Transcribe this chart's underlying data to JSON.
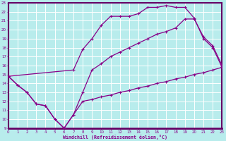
{
  "xlabel": "Windchill (Refroidissement éolien,°C)",
  "bg_color": "#b8ecec",
  "grid_color": "#ffffff",
  "line_color": "#880088",
  "spine_color": "#660066",
  "xlim": [
    0,
    23
  ],
  "ylim": [
    9,
    23
  ],
  "xticks": [
    0,
    1,
    2,
    3,
    4,
    5,
    6,
    7,
    8,
    9,
    10,
    11,
    12,
    13,
    14,
    15,
    16,
    17,
    18,
    19,
    20,
    21,
    22,
    23
  ],
  "yticks": [
    9,
    10,
    11,
    12,
    13,
    14,
    15,
    16,
    17,
    18,
    19,
    20,
    21,
    22,
    23
  ],
  "curve1_x": [
    0,
    1,
    2,
    3,
    4,
    5,
    6,
    7,
    8,
    9,
    10,
    11,
    12,
    13,
    14,
    15,
    16,
    17,
    18,
    19,
    20,
    21,
    22,
    23
  ],
  "curve1_y": [
    14.8,
    13.8,
    13.0,
    11.7,
    11.5,
    10.0,
    9.0,
    10.5,
    12.0,
    12.2,
    12.5,
    12.7,
    13.0,
    13.2,
    13.5,
    13.7,
    14.0,
    14.2,
    14.5,
    14.7,
    15.0,
    15.2,
    15.5,
    15.8
  ],
  "curve2_x": [
    0,
    7,
    8,
    9,
    10,
    11,
    12,
    13,
    14,
    15,
    16,
    17,
    18,
    19,
    20,
    21,
    22,
    23
  ],
  "curve2_y": [
    14.8,
    15.5,
    17.8,
    19.0,
    20.5,
    21.5,
    21.5,
    21.5,
    21.8,
    22.5,
    22.5,
    22.7,
    22.5,
    22.5,
    21.3,
    19.0,
    18.0,
    15.8
  ],
  "curve3_x": [
    0,
    1,
    2,
    3,
    4,
    5,
    6,
    7,
    8,
    9,
    10,
    11,
    12,
    13,
    14,
    15,
    16,
    17,
    18,
    19,
    20,
    21,
    22,
    23
  ],
  "curve3_y": [
    14.8,
    13.8,
    13.0,
    11.7,
    11.5,
    10.0,
    9.0,
    10.5,
    13.0,
    15.5,
    16.2,
    17.0,
    17.5,
    18.0,
    18.5,
    19.0,
    19.5,
    19.8,
    20.2,
    21.2,
    21.2,
    19.2,
    18.2,
    16.0
  ]
}
